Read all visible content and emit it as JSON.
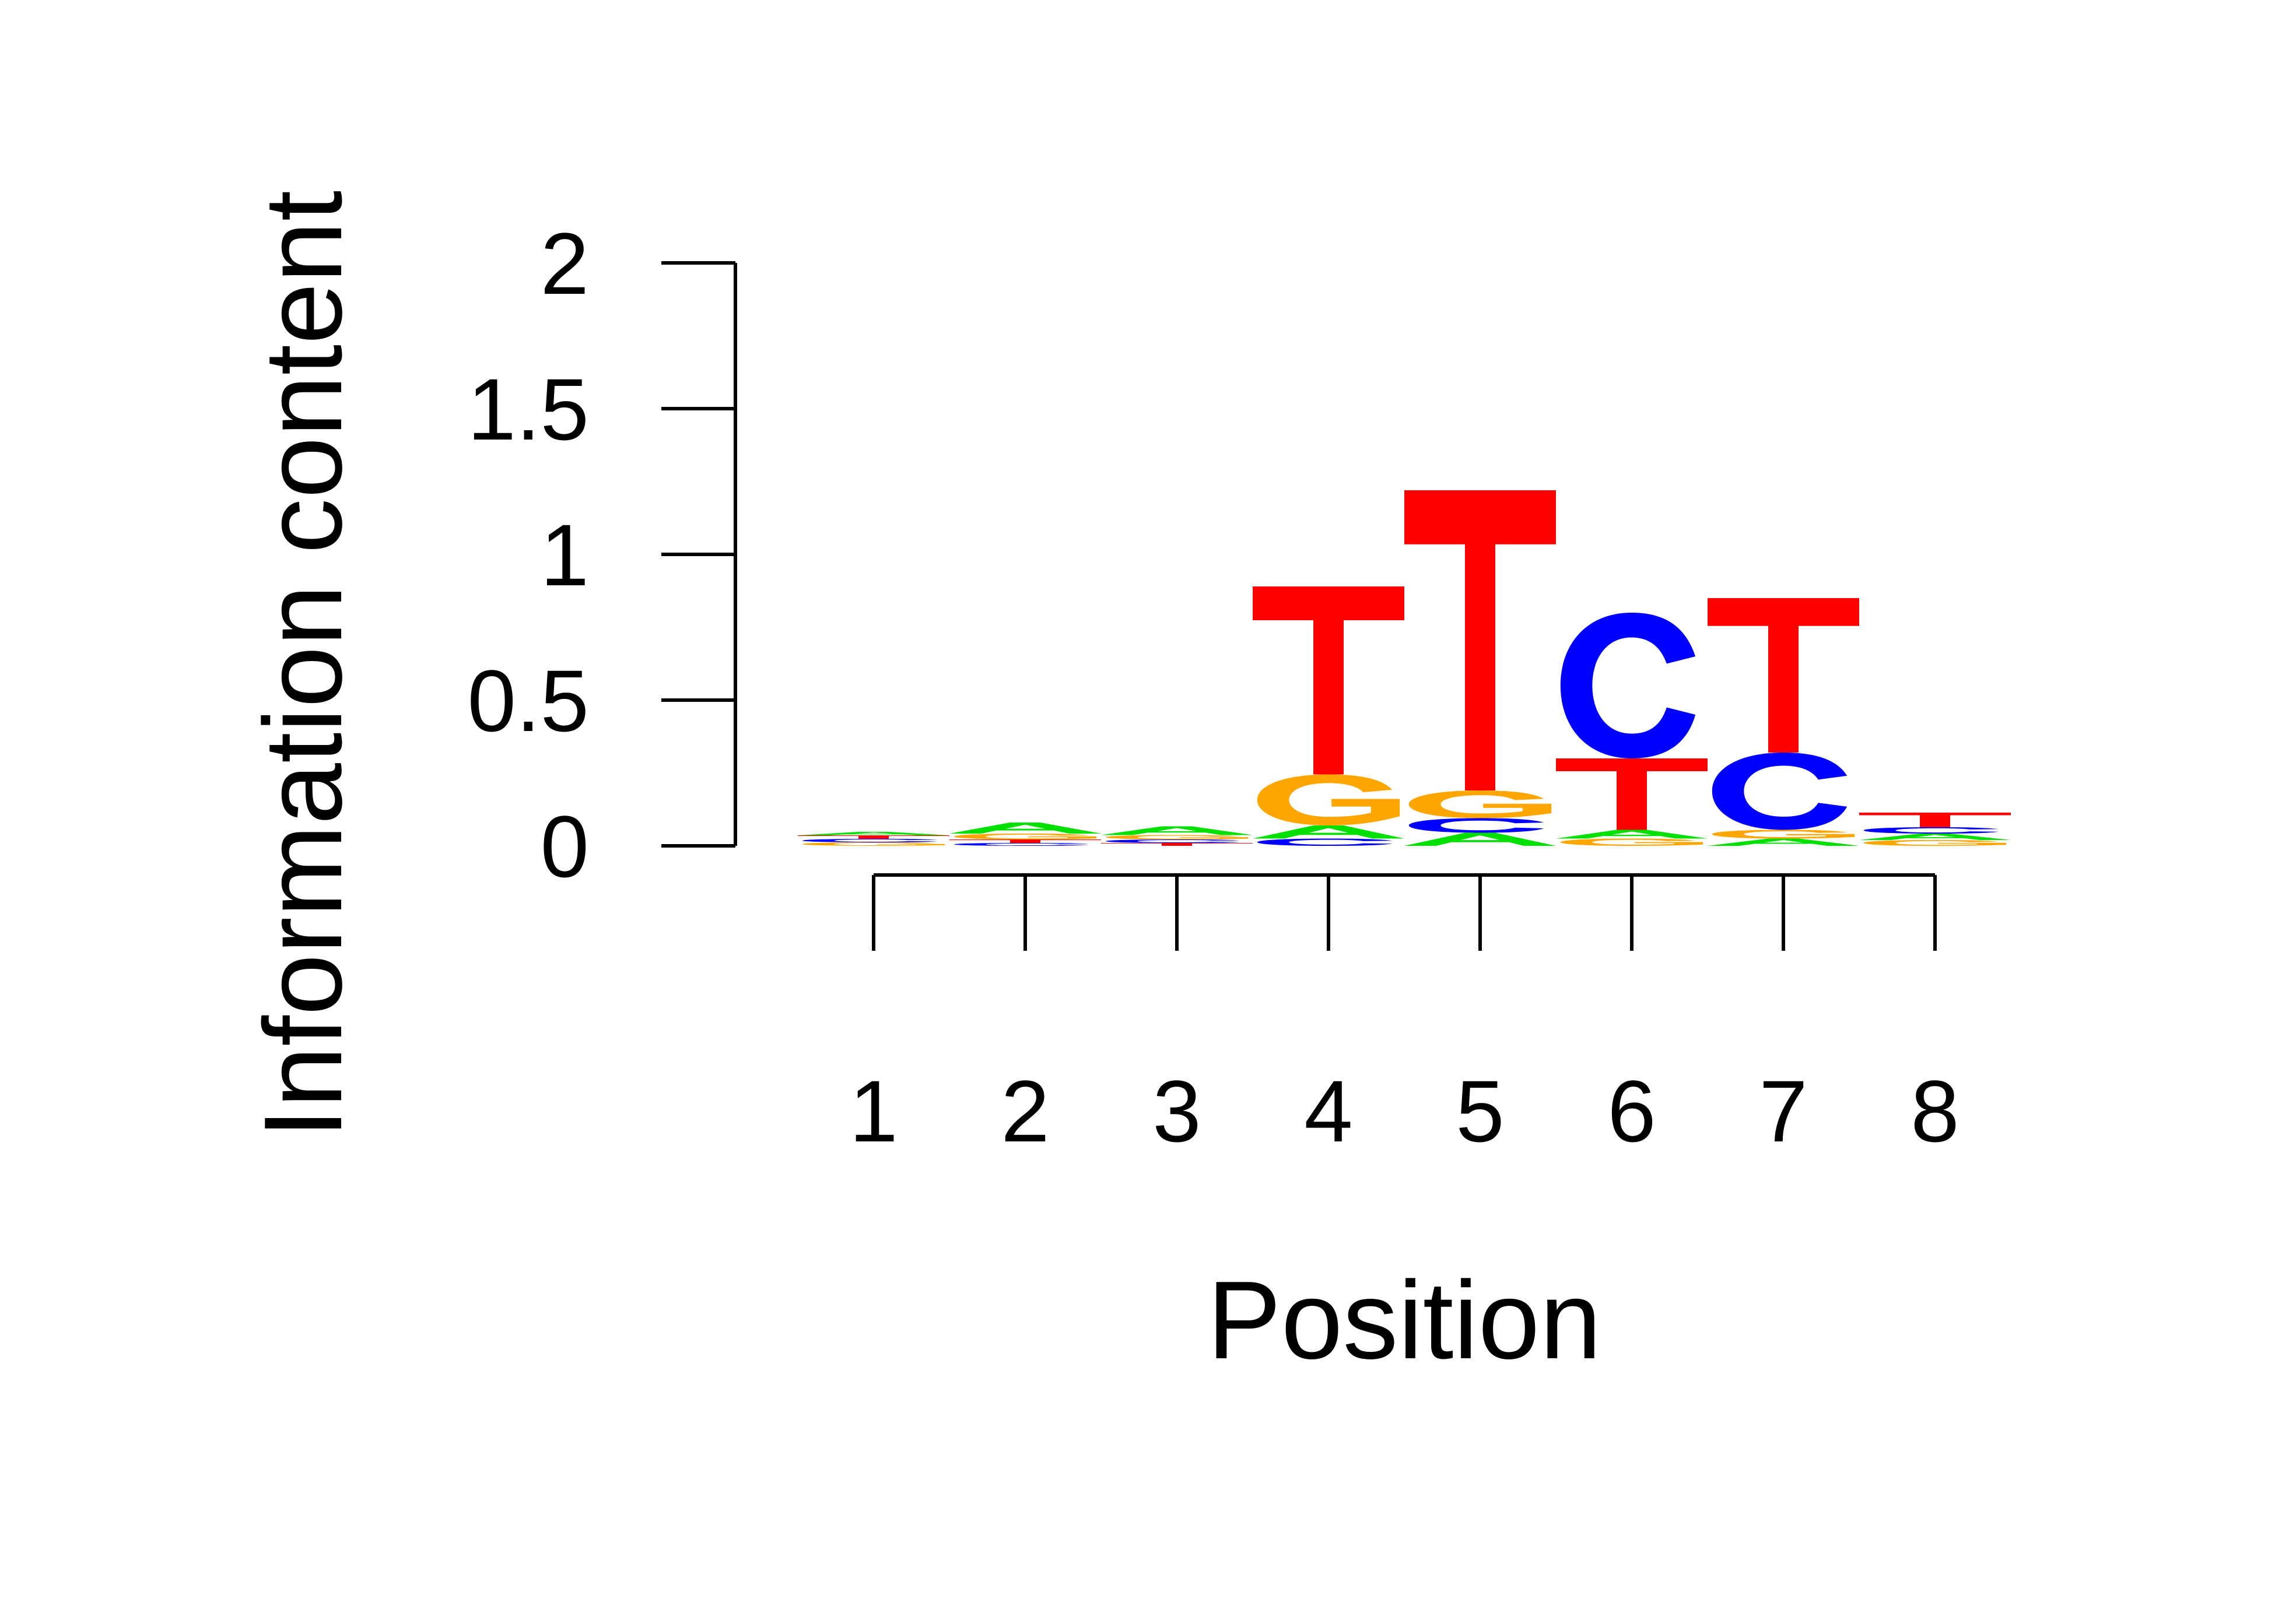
{
  "chart_data": {
    "type": "sequence-logo",
    "xlabel": "Position",
    "ylabel": "Information content",
    "ylim": [
      0,
      2
    ],
    "yticks": [
      "0",
      "0.5",
      "1",
      "1.5",
      "2"
    ],
    "positions": [
      "1",
      "2",
      "3",
      "4",
      "5",
      "6",
      "7",
      "8"
    ],
    "colors": {
      "A": "#00e000",
      "C": "#0000ff",
      "G": "#ffa500",
      "T": "#ff0000"
    },
    "columns": [
      {
        "position": "1",
        "letters": [
          {
            "base": "G",
            "height": 0.012
          },
          {
            "base": "C",
            "height": 0.012
          },
          {
            "base": "T",
            "height": 0.012
          },
          {
            "base": "A",
            "height": 0.012
          }
        ]
      },
      {
        "position": "2",
        "letters": [
          {
            "base": "C",
            "height": 0.01
          },
          {
            "base": "T",
            "height": 0.012
          },
          {
            "base": "G",
            "height": 0.02
          },
          {
            "base": "A",
            "height": 0.038
          }
        ]
      },
      {
        "position": "3",
        "letters": [
          {
            "base": "T",
            "height": 0.01
          },
          {
            "base": "C",
            "height": 0.012
          },
          {
            "base": "G",
            "height": 0.015
          },
          {
            "base": "A",
            "height": 0.03
          }
        ]
      },
      {
        "position": "4",
        "letters": [
          {
            "base": "C",
            "height": 0.025
          },
          {
            "base": "A",
            "height": 0.045
          },
          {
            "base": "G",
            "height": 0.175
          },
          {
            "base": "T",
            "height": 0.645
          }
        ]
      },
      {
        "position": "5",
        "letters": [
          {
            "base": "A",
            "height": 0.045
          },
          {
            "base": "C",
            "height": 0.05
          },
          {
            "base": "G",
            "height": 0.095
          },
          {
            "base": "T",
            "height": 1.03
          }
        ]
      },
      {
        "position": "6",
        "letters": [
          {
            "base": "G",
            "height": 0.025
          },
          {
            "base": "A",
            "height": 0.03
          },
          {
            "base": "T",
            "height": 0.245
          },
          {
            "base": "C",
            "height": 0.5
          }
        ]
      },
      {
        "position": "7",
        "letters": [
          {
            "base": "A",
            "height": 0.025
          },
          {
            "base": "G",
            "height": 0.03
          },
          {
            "base": "C",
            "height": 0.265
          },
          {
            "base": "T",
            "height": 0.53
          }
        ]
      },
      {
        "position": "8",
        "letters": [
          {
            "base": "G",
            "height": 0.02
          },
          {
            "base": "A",
            "height": 0.022
          },
          {
            "base": "C",
            "height": 0.022
          },
          {
            "base": "T",
            "height": 0.05
          }
        ]
      }
    ]
  }
}
